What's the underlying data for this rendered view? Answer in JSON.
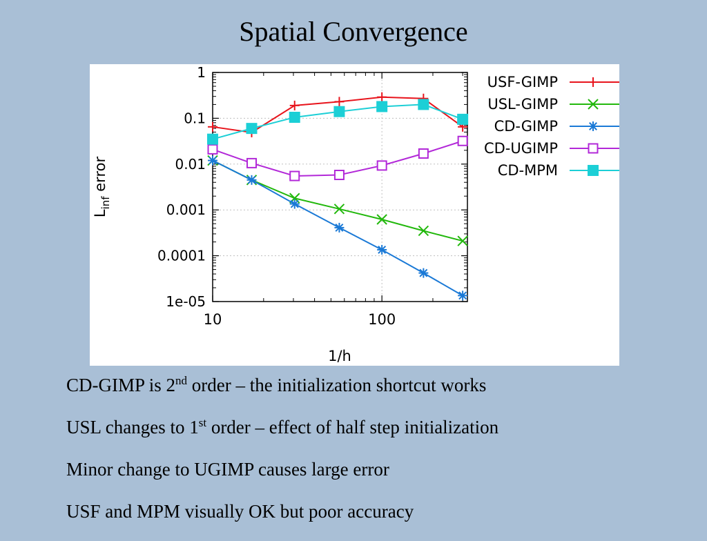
{
  "slide": {
    "title": "Spatial Convergence"
  },
  "chart_data": {
    "type": "line",
    "xlabel": "1/h",
    "ylabel_main": "L",
    "ylabel_sub": "inf",
    "ylabel_rest": " error",
    "x_scale": "log",
    "y_scale": "log",
    "xlim": [
      10,
      320
    ],
    "ylim": [
      1e-05,
      1
    ],
    "x_ticks": [
      {
        "value": 10,
        "label": "10"
      },
      {
        "value": 100,
        "label": "100"
      }
    ],
    "y_ticks": [
      {
        "value": 1,
        "label": "1"
      },
      {
        "value": 0.1,
        "label": "0.1"
      },
      {
        "value": 0.01,
        "label": "0.01"
      },
      {
        "value": 0.001,
        "label": "0.001"
      },
      {
        "value": 0.0001,
        "label": "0.0001"
      },
      {
        "value": 1e-05,
        "label": "1e-05"
      }
    ],
    "grid": true,
    "legend_position": "right-top",
    "x": [
      10,
      17,
      30.5,
      56,
      100,
      176,
      300
    ],
    "series": [
      {
        "name": "USF-GIMP",
        "color": "#e8141c",
        "marker": "plus",
        "values": [
          0.065,
          0.049,
          0.19,
          0.23,
          0.29,
          0.27,
          0.065
        ]
      },
      {
        "name": "USL-GIMP",
        "color": "#22b80c",
        "marker": "cross",
        "values": [
          0.012,
          0.0045,
          0.0018,
          0.00105,
          0.00062,
          0.00035,
          0.00021
        ]
      },
      {
        "name": "CD-GIMP",
        "color": "#1a79d6",
        "marker": "star",
        "values": [
          0.012,
          0.0045,
          0.00135,
          0.00041,
          0.000135,
          4.2e-05,
          1.35e-05
        ]
      },
      {
        "name": "CD-UGIMP",
        "color": "#b228d8",
        "marker": "open-square",
        "values": [
          0.021,
          0.0105,
          0.0055,
          0.0058,
          0.0093,
          0.017,
          0.032
        ]
      },
      {
        "name": "CD-MPM",
        "color": "#1ccfd6",
        "marker": "filled-square",
        "values": [
          0.035,
          0.06,
          0.105,
          0.14,
          0.18,
          0.2,
          0.095
        ]
      }
    ]
  },
  "notes": [
    {
      "pre": "CD-GIMP is 2",
      "sup": "nd",
      "post": " order – the initialization shortcut works"
    },
    {
      "pre": "USL changes to 1",
      "sup": "st",
      "post": " order – effect of half step initialization"
    },
    {
      "pre": "Minor change to UGIMP causes large error",
      "sup": "",
      "post": ""
    },
    {
      "pre": "USF and MPM visually OK but poor accuracy",
      "sup": "",
      "post": ""
    }
  ]
}
